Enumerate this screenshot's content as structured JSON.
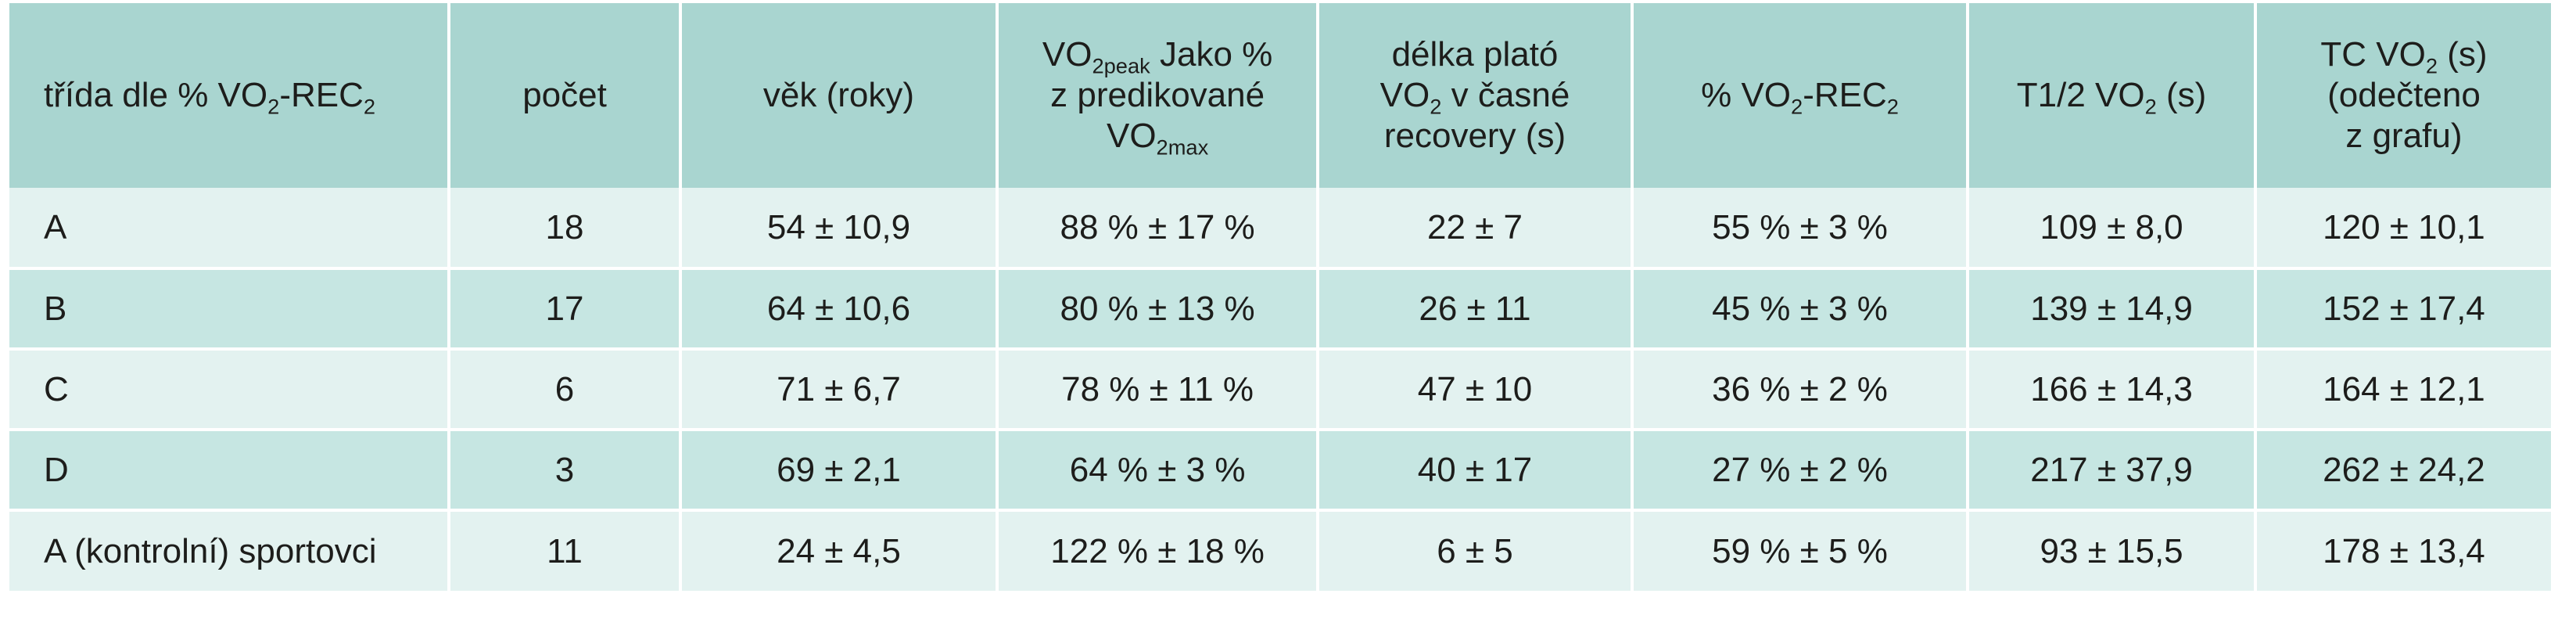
{
  "header": {
    "col1": {
      "pre": "třída dle % VO",
      "sub": "2",
      "post": "-REC",
      "sub2": "2"
    },
    "col2": "počet",
    "col3": "věk (roky)",
    "col4": {
      "l1_pre": "VO",
      "l1_sub": "2peak",
      "l1_post": " Jako %",
      "l2": "z predikované",
      "l3_pre": "VO",
      "l3_sub": "2max"
    },
    "col5": {
      "l1": "délka plató",
      "l2_pre": "VO",
      "l2_sub": "2",
      "l2_post": " v časné",
      "l3": "recovery (s)"
    },
    "col6": {
      "pre": "% VO",
      "sub": "2",
      "post": "-REC",
      "sub2": "2"
    },
    "col7": {
      "pre": "T1/2 VO",
      "sub": "2",
      "post": " (s)"
    },
    "col8": {
      "l1_pre": "TC VO",
      "l1_sub": "2",
      "l1_post": " (s)",
      "l2": "(odečteno",
      "l3": "z grafu)"
    }
  },
  "rows": [
    {
      "trida": "A",
      "pocet": "18",
      "vek": "54 ± 10,9",
      "vo2peak": "88 % ± 17 %",
      "plato": "22 ± 7",
      "rec": "55 % ± 3 %",
      "t12": "109 ± 8,0",
      "tc": "120 ± 10,1"
    },
    {
      "trida": "B",
      "pocet": "17",
      "vek": "64 ± 10,6",
      "vo2peak": "80 % ± 13 %",
      "plato": "26 ± 11",
      "rec": "45 % ± 3 %",
      "t12": "139 ± 14,9",
      "tc": "152 ± 17,4"
    },
    {
      "trida": "C",
      "pocet": "6",
      "vek": "71 ± 6,7",
      "vo2peak": "78 % ± 11 %",
      "plato": "47 ± 10",
      "rec": "36 % ± 2 %",
      "t12": "166 ± 14,3",
      "tc": "164 ± 12,1"
    },
    {
      "trida": "D",
      "pocet": "3",
      "vek": "69 ± 2,1",
      "vo2peak": "64 % ± 3 %",
      "plato": "40 ± 17",
      "rec": "27 % ± 2 %",
      "t12": "217 ± 37,9",
      "tc": "262 ± 24,2"
    },
    {
      "trida": "A (kontrolní) sportovci",
      "pocet": "11",
      "vek": "24 ± 4,5",
      "vo2peak": "122 % ± 18 %",
      "plato": "6 ± 5",
      "rec": "59 % ± 5 %",
      "t12": "93 ± 15,5",
      "tc": "178 ± 13,4"
    }
  ],
  "colors": {
    "header_bg": "#a9d5d0",
    "row_light": "#e3f2f0",
    "row_dark": "#c6e6e2",
    "text": "#1d1d1b"
  }
}
